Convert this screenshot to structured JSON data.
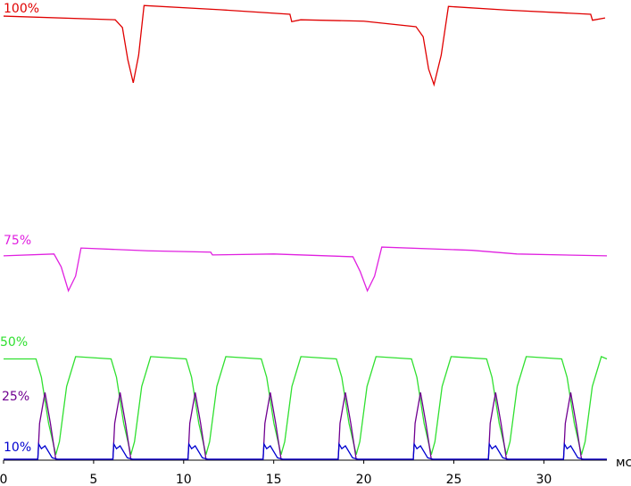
{
  "chart_data": {
    "type": "line",
    "x_label": "мс",
    "xlim": [
      0,
      33.5
    ],
    "xticks": [
      0,
      5,
      10,
      15,
      20,
      25,
      30
    ],
    "ylim": [
      0,
      100
    ],
    "series": [
      {
        "name": "100%",
        "color": "#e00000",
        "x": [
          0,
          6.2,
          6.6,
          6.9,
          7.2,
          7.5,
          7.8,
          12,
          15.9,
          16.0,
          16.5,
          20,
          22.9,
          23.3,
          23.6,
          23.9,
          24.3,
          24.7,
          28,
          32.6,
          32.7,
          33.4
        ],
        "values": [
          96.5,
          95.7,
          94,
          87,
          82,
          88,
          98.8,
          97.9,
          96.9,
          95.3,
          95.7,
          95.4,
          94.2,
          92,
          85,
          81.6,
          88,
          98.6,
          97.8,
          96.9,
          95.6,
          96.1
        ]
      },
      {
        "name": "75%",
        "color": "#e020e0",
        "x": [
          0,
          2.8,
          3.2,
          3.6,
          4.0,
          4.3,
          8,
          11.5,
          11.6,
          15,
          19.4,
          19.8,
          20.2,
          20.6,
          21.0,
          26,
          28.5,
          33.5
        ],
        "values": [
          44.4,
          44.8,
          42,
          36.8,
          40,
          46.1,
          45.5,
          45.2,
          44.6,
          44.8,
          44.2,
          41,
          36.8,
          40,
          46.3,
          45.6,
          44.8,
          44.4
        ]
      },
      {
        "name": "50%",
        "color": "#30e030",
        "x": [
          0,
          1.8,
          2.1,
          2.5,
          2.9,
          3.1,
          3.5,
          4.0,
          5.97,
          6.27,
          6.67,
          7.07,
          7.27,
          7.67,
          8.17,
          10.14,
          10.44,
          10.84,
          11.24,
          11.44,
          11.84,
          12.34,
          14.31,
          14.61,
          15.01,
          15.41,
          15.61,
          16.01,
          16.51,
          18.48,
          18.78,
          19.18,
          19.58,
          19.78,
          20.18,
          20.68,
          22.65,
          22.95,
          23.35,
          23.75,
          23.95,
          24.35,
          24.85,
          26.82,
          27.12,
          27.52,
          27.92,
          28.12,
          28.52,
          29.02,
          30.99,
          31.29,
          31.69,
          32.09,
          32.29,
          32.69,
          33.19,
          33.5
        ],
        "values": [
          22,
          22,
          18,
          8,
          1.2,
          4,
          16,
          22.5,
          22,
          18,
          8,
          1.2,
          4,
          16,
          22.5,
          22,
          18,
          8,
          1.2,
          4,
          16,
          22.5,
          22,
          18,
          8,
          1.2,
          4,
          16,
          22.5,
          22,
          18,
          8,
          1.2,
          4,
          16,
          22.5,
          22,
          18,
          8,
          1.2,
          4,
          16,
          22.5,
          22,
          18,
          8,
          1.2,
          4,
          16,
          22.5,
          22,
          18,
          8,
          1.2,
          4,
          16,
          22.5,
          22
        ]
      },
      {
        "name": "25%",
        "color": "#700090",
        "x": [
          0,
          1.9,
          2.0,
          2.3,
          2.6,
          2.9,
          6.07,
          6.17,
          6.47,
          6.77,
          7.07,
          10.24,
          10.34,
          10.64,
          10.94,
          11.24,
          14.41,
          14.51,
          14.81,
          15.11,
          15.41,
          18.58,
          18.68,
          18.98,
          19.28,
          19.58,
          22.75,
          22.85,
          23.15,
          23.45,
          23.75,
          26.92,
          27.02,
          27.32,
          27.62,
          27.92,
          31.09,
          31.19,
          31.49,
          31.79,
          32.09,
          33.5
        ],
        "values": [
          0.2,
          0.2,
          8,
          14.7,
          8,
          0.2,
          0.2,
          8,
          14.7,
          8,
          0.2,
          0.2,
          8,
          14.7,
          8,
          0.2,
          0.2,
          8,
          14.7,
          8,
          0.2,
          0.2,
          8,
          14.7,
          8,
          0.2,
          0.2,
          8,
          14.7,
          8,
          0.2,
          0.2,
          8,
          14.7,
          8,
          0.2,
          0.2,
          8,
          14.7,
          8,
          0.2,
          0.2
        ]
      },
      {
        "name": "10%",
        "color": "#0000d0",
        "x": [
          0,
          1.9,
          1.95,
          2.1,
          2.3,
          2.7,
          3.0,
          6.07,
          6.12,
          6.27,
          6.47,
          6.87,
          7.17,
          10.24,
          10.29,
          10.44,
          10.64,
          11.04,
          11.34,
          14.41,
          14.46,
          14.61,
          14.81,
          15.21,
          15.51,
          18.58,
          18.63,
          18.78,
          18.98,
          19.38,
          19.68,
          22.75,
          22.8,
          22.95,
          23.15,
          23.55,
          23.85,
          26.92,
          26.97,
          27.12,
          27.32,
          27.72,
          28.02,
          31.09,
          31.14,
          31.29,
          31.49,
          31.89,
          32.19,
          33.5
        ],
        "values": [
          0.2,
          0.2,
          3.5,
          2.5,
          3.1,
          0.5,
          0.2,
          0.2,
          3.5,
          2.5,
          3.1,
          0.5,
          0.2,
          0.2,
          3.5,
          2.5,
          3.1,
          0.5,
          0.2,
          0.2,
          3.5,
          2.5,
          3.1,
          0.5,
          0.2,
          0.2,
          3.5,
          2.5,
          3.1,
          0.5,
          0.2,
          0.2,
          3.5,
          2.5,
          3.1,
          0.5,
          0.2,
          0.2,
          3.5,
          2.5,
          3.1,
          0.5,
          0.2,
          0.2,
          3.5,
          2.5,
          3.1,
          0.5,
          0.2,
          0.2
        ]
      }
    ]
  }
}
